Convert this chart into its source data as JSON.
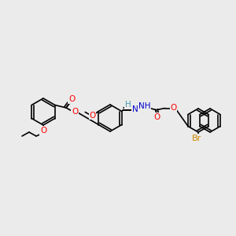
{
  "background_color": "#ebebeb",
  "bond_color": "#000000",
  "bond_width": 1.2,
  "atom_colors": {
    "O": "#ff0000",
    "N": "#0000cc",
    "Br": "#cc8800",
    "H": "#4499aa",
    "C": "#000000"
  },
  "font_size": 7.5
}
